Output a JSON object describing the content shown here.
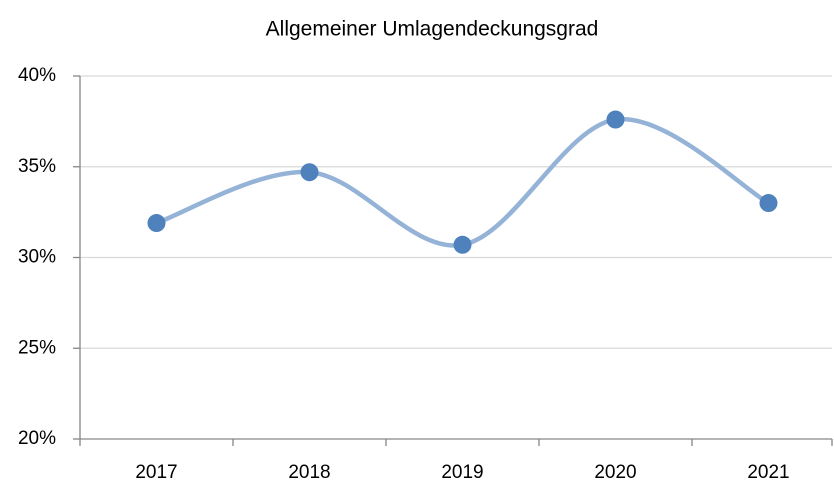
{
  "chart_data": {
    "type": "line",
    "title": "Allgemeiner Umlagendeckungsgrad",
    "categories": [
      "2017",
      "2018",
      "2019",
      "2020",
      "2021"
    ],
    "series": [
      {
        "name": "Allgemeiner Umlagendeckungsgrad",
        "color": "#95b3d7",
        "marker_color": "#4f81bd",
        "values": [
          31.9,
          34.7,
          30.7,
          37.6,
          33.0
        ]
      }
    ],
    "ylim": [
      20,
      40
    ],
    "yticks": [
      {
        "value": 20,
        "label": "20%"
      },
      {
        "value": 25,
        "label": "25%"
      },
      {
        "value": 30,
        "label": "30%"
      },
      {
        "value": 35,
        "label": "35%"
      },
      {
        "value": 40,
        "label": "40%"
      }
    ],
    "grid": true,
    "smooth": true
  }
}
